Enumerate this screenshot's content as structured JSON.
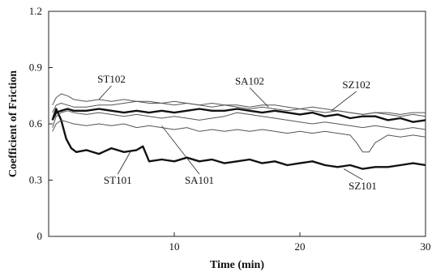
{
  "chart_data": {
    "type": "line",
    "xlabel": "Time (min)",
    "ylabel": "Coefficient of Friction",
    "xlim": [
      0,
      30
    ],
    "ylim": [
      0,
      1.2
    ],
    "x_ticks": [
      10,
      20,
      30
    ],
    "y_ticks": [
      "0",
      "0.3",
      "0.6",
      "0.9",
      "1.2"
    ],
    "grid": false,
    "legend": "none",
    "series": [
      {
        "name": "ST101",
        "weight": "heavy",
        "x": [
          0.3,
          0.6,
          1.0,
          1.4,
          1.8,
          2.2,
          3,
          4,
          5,
          6,
          7,
          7.5,
          8,
          9,
          10,
          11,
          12,
          13,
          14,
          15,
          16,
          17,
          18,
          19,
          20,
          21,
          22,
          23,
          24,
          25,
          26,
          27,
          28,
          29,
          30
        ],
        "y": [
          0.62,
          0.68,
          0.62,
          0.52,
          0.47,
          0.45,
          0.46,
          0.44,
          0.47,
          0.45,
          0.46,
          0.48,
          0.4,
          0.41,
          0.4,
          0.42,
          0.4,
          0.41,
          0.39,
          0.4,
          0.41,
          0.39,
          0.4,
          0.38,
          0.39,
          0.4,
          0.38,
          0.37,
          0.38,
          0.36,
          0.37,
          0.37,
          0.38,
          0.39,
          0.38
        ]
      },
      {
        "name": "SA101",
        "weight": "heavy",
        "x": [
          0.3,
          0.6,
          1.0,
          1.5,
          2,
          3,
          4,
          5,
          6,
          7,
          8,
          9,
          10,
          11,
          12,
          13,
          14,
          15,
          16,
          17,
          18,
          19,
          20,
          21,
          22,
          23,
          24,
          25,
          26,
          27,
          28,
          29,
          30
        ],
        "y": [
          0.62,
          0.66,
          0.67,
          0.68,
          0.67,
          0.67,
          0.68,
          0.67,
          0.66,
          0.67,
          0.66,
          0.67,
          0.66,
          0.67,
          0.68,
          0.67,
          0.67,
          0.68,
          0.67,
          0.66,
          0.67,
          0.66,
          0.65,
          0.66,
          0.64,
          0.65,
          0.63,
          0.64,
          0.64,
          0.62,
          0.63,
          0.61,
          0.62
        ]
      },
      {
        "name": "ST102",
        "weight": "light",
        "x": [
          0.3,
          0.6,
          1.0,
          1.5,
          2,
          3,
          4,
          5,
          6,
          7,
          8,
          9,
          10,
          11,
          12,
          13,
          14,
          15,
          16,
          17,
          18,
          19,
          20,
          21,
          22,
          23,
          24,
          25,
          26,
          27,
          28,
          29,
          30
        ],
        "y": [
          0.7,
          0.74,
          0.76,
          0.75,
          0.73,
          0.72,
          0.73,
          0.72,
          0.73,
          0.72,
          0.71,
          0.71,
          0.7,
          0.71,
          0.7,
          0.69,
          0.7,
          0.69,
          0.68,
          0.69,
          0.68,
          0.67,
          0.68,
          0.67,
          0.66,
          0.67,
          0.66,
          0.65,
          0.66,
          0.65,
          0.64,
          0.65,
          0.64
        ]
      },
      {
        "name": "SA102",
        "weight": "light",
        "x": [
          0.3,
          0.6,
          1.0,
          1.5,
          2,
          3,
          4,
          5,
          6,
          7,
          8,
          9,
          10,
          11,
          12,
          13,
          14,
          15,
          16,
          17,
          18,
          19,
          20,
          21,
          22,
          23,
          24,
          25,
          26,
          27,
          28,
          29,
          30
        ],
        "y": [
          0.58,
          0.64,
          0.66,
          0.67,
          0.66,
          0.65,
          0.66,
          0.65,
          0.64,
          0.65,
          0.64,
          0.63,
          0.64,
          0.63,
          0.62,
          0.63,
          0.64,
          0.66,
          0.65,
          0.64,
          0.63,
          0.62,
          0.61,
          0.6,
          0.61,
          0.6,
          0.59,
          0.58,
          0.59,
          0.58,
          0.57,
          0.58,
          0.57
        ]
      },
      {
        "name": "SZ102",
        "weight": "light",
        "x": [
          0.3,
          0.6,
          1.0,
          1.5,
          2,
          3,
          4,
          5,
          6,
          7,
          8,
          9,
          10,
          11,
          12,
          13,
          14,
          15,
          16,
          17,
          18,
          19,
          20,
          21,
          22,
          23,
          24,
          25,
          26,
          27,
          28,
          29,
          30
        ],
        "y": [
          0.66,
          0.7,
          0.71,
          0.7,
          0.69,
          0.69,
          0.7,
          0.7,
          0.71,
          0.72,
          0.72,
          0.71,
          0.72,
          0.71,
          0.7,
          0.71,
          0.7,
          0.7,
          0.69,
          0.7,
          0.7,
          0.69,
          0.68,
          0.69,
          0.68,
          0.67,
          0.66,
          0.65,
          0.66,
          0.66,
          0.65,
          0.66,
          0.66
        ]
      },
      {
        "name": "SZ101",
        "weight": "light",
        "x": [
          0.3,
          0.6,
          1.0,
          1.5,
          2,
          3,
          4,
          5,
          6,
          7,
          8,
          9,
          10,
          11,
          12,
          13,
          14,
          15,
          16,
          17,
          18,
          19,
          20,
          21,
          22,
          23,
          24,
          24.5,
          25,
          25.5,
          26,
          27,
          28,
          29,
          30
        ],
        "y": [
          0.56,
          0.6,
          0.62,
          0.61,
          0.6,
          0.59,
          0.6,
          0.59,
          0.6,
          0.58,
          0.59,
          0.58,
          0.57,
          0.58,
          0.56,
          0.57,
          0.56,
          0.57,
          0.56,
          0.57,
          0.56,
          0.55,
          0.56,
          0.55,
          0.56,
          0.55,
          0.54,
          0.5,
          0.45,
          0.45,
          0.5,
          0.54,
          0.53,
          0.54,
          0.53
        ]
      }
    ],
    "annotations": [
      {
        "text": "ST102",
        "x": 5.0,
        "y": 0.82,
        "target_x": 4.0,
        "target_y": 0.73
      },
      {
        "text": "SA102",
        "x": 16.0,
        "y": 0.81,
        "target_x": 17.5,
        "target_y": 0.69
      },
      {
        "text": "SZ102",
        "x": 24.5,
        "y": 0.79,
        "target_x": 22.5,
        "target_y": 0.67
      },
      {
        "text": "ST101",
        "x": 5.5,
        "y": 0.28,
        "target_x": 6.5,
        "target_y": 0.45
      },
      {
        "text": "SA101",
        "x": 12.0,
        "y": 0.28,
        "target_x": 9.0,
        "target_y": 0.59
      },
      {
        "text": "SZ101",
        "x": 25.0,
        "y": 0.25,
        "target_x": 23.5,
        "target_y": 0.36
      }
    ]
  }
}
